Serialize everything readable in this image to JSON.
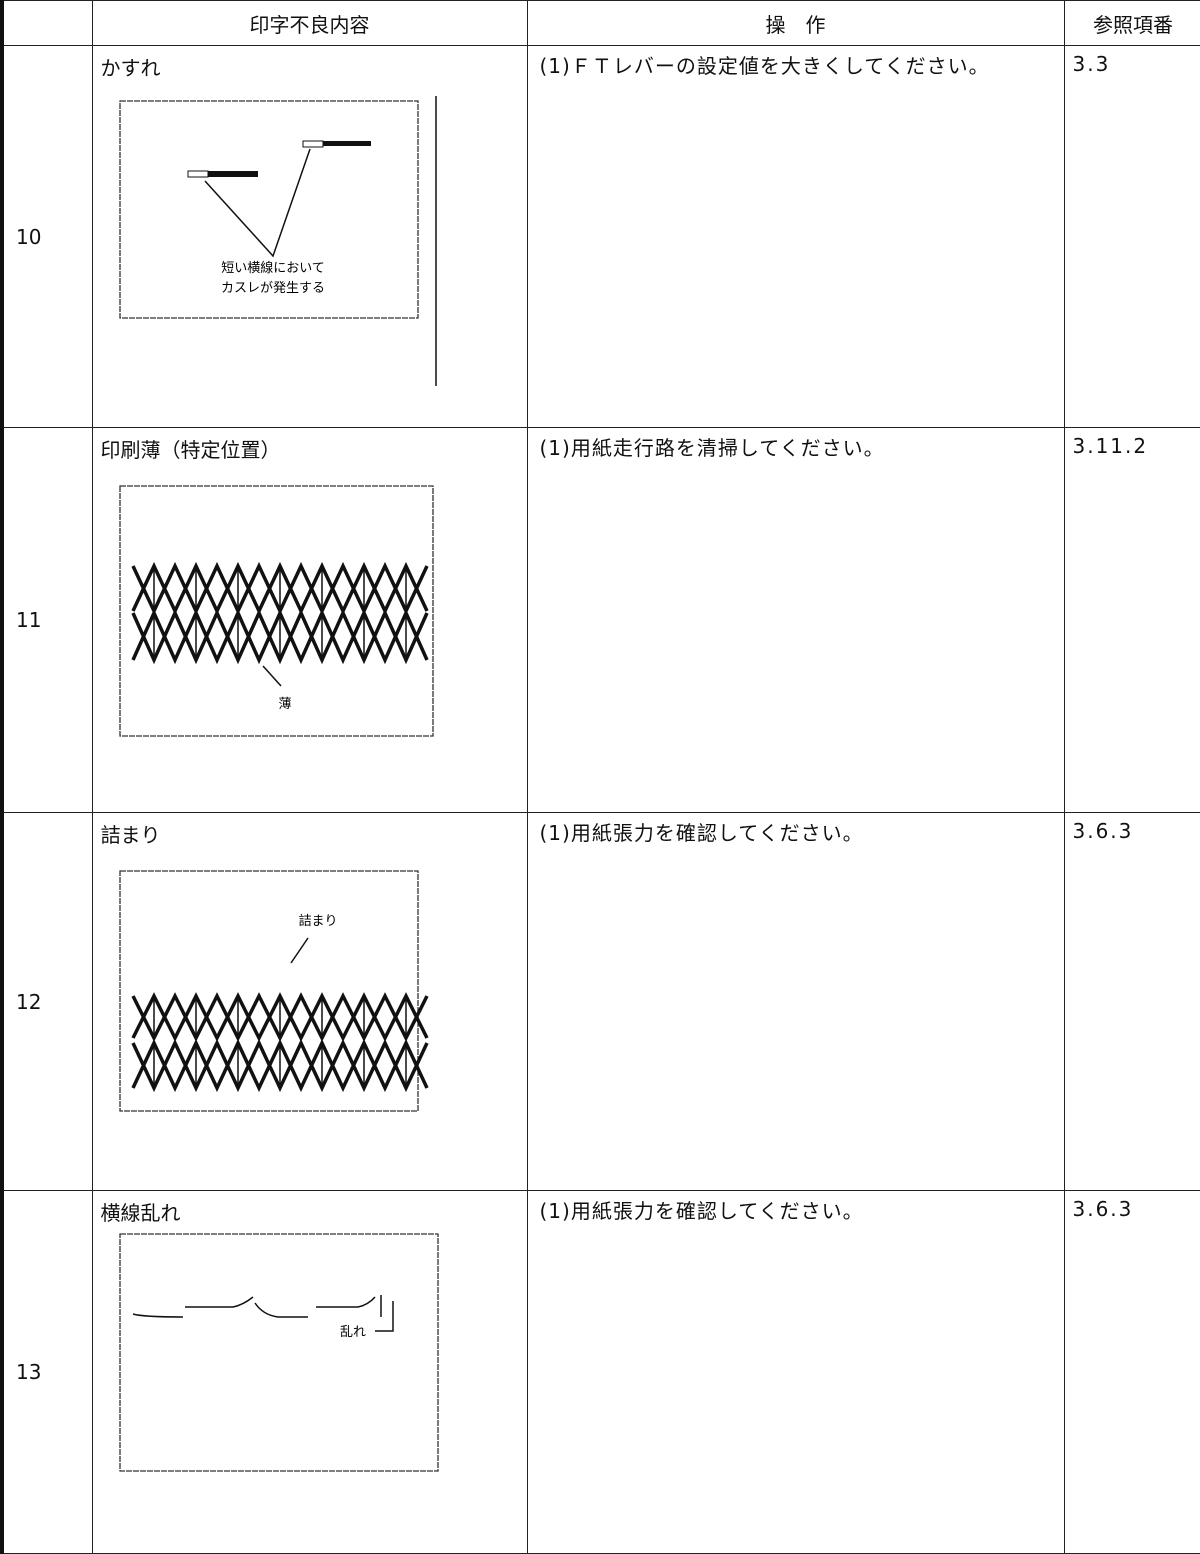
{
  "table": {
    "header": {
      "defect": "印字不良内容",
      "operation": "操　作",
      "reference": "参照項番"
    },
    "rows": [
      {
        "no": "10",
        "defect": "かすれ",
        "figure_labels": [
          "短い横線において",
          "カスレが発生する"
        ],
        "operation": "(1)ＦＴレバーの設定値を大きくしてください。",
        "reference": "3.3"
      },
      {
        "no": "11",
        "defect": "印刷薄（特定位置）",
        "figure_labels": [
          "薄"
        ],
        "operation": "(1)用紙走行路を清掃してください。",
        "reference": "3.11.2"
      },
      {
        "no": "12",
        "defect": "詰まり",
        "figure_labels": [
          "詰まり"
        ],
        "operation": "(1)用紙張力を確認してください。",
        "reference": "3.6.3"
      },
      {
        "no": "13",
        "defect": "横線乱れ",
        "figure_labels": [
          "乱れ"
        ],
        "operation": "(1)用紙張力を確認してください。",
        "reference": "3.6.3"
      }
    ]
  }
}
